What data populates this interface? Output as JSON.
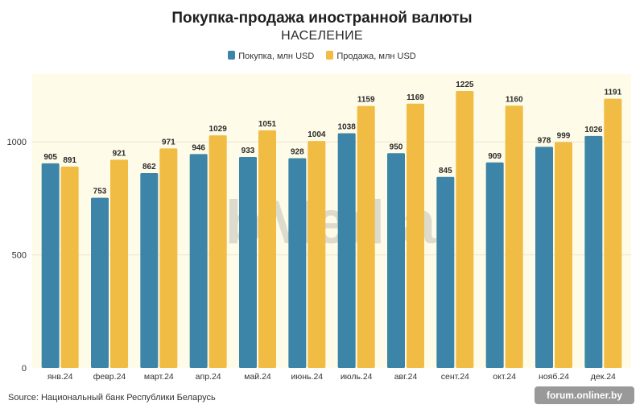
{
  "chart_data": {
    "type": "bar",
    "title": "Покупка-продажа иностранной валюты",
    "subtitle": "НАСЕЛЕНИЕ",
    "categories": [
      "янв.24",
      "февр.24",
      "март.24",
      "апр.24",
      "май.24",
      "июнь.24",
      "июль.24",
      "авг.24",
      "сент.24",
      "окт.24",
      "нояб.24",
      "дек.24"
    ],
    "series": [
      {
        "name": "Покупка, млн USD",
        "color": "#3d85a8",
        "values": [
          905,
          753,
          862,
          946,
          933,
          928,
          1038,
          950,
          845,
          909,
          978,
          1026
        ]
      },
      {
        "name": "Продажа, млн USD",
        "color": "#f0bc43",
        "values": [
          891,
          921,
          971,
          1029,
          1051,
          1004,
          1159,
          1169,
          1225,
          1160,
          999,
          1191
        ]
      }
    ],
    "yticks": [
      0,
      500,
      1000
    ],
    "ylim": [
      0,
      1300
    ],
    "xlabel": "",
    "ylabel": "",
    "grid": true,
    "legend_position": "top-center"
  },
  "source": "Source: Национальный банк Республики Беларусь",
  "watermark_text": "ibMedia",
  "site_watermark": "forum.onliner.by",
  "colors": {
    "plot_background": "#fefbe8",
    "gridline": "#ebe6cc"
  }
}
